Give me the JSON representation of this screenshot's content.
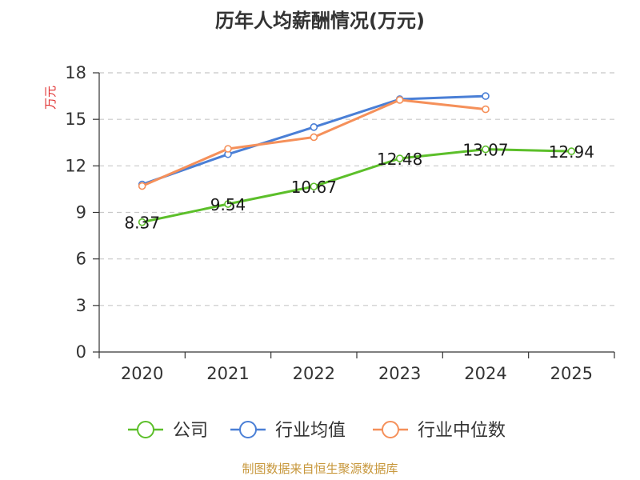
{
  "chart_data": {
    "type": "line",
    "title": "历年人均薪酬情况(万元)",
    "ylabel": "万元",
    "xlabel": "",
    "ylim": [
      0,
      18
    ],
    "yticks": [
      0,
      3,
      6,
      9,
      12,
      15,
      18
    ],
    "categories": [
      "2020",
      "2021",
      "2022",
      "2023",
      "2024",
      "2025"
    ],
    "series": [
      {
        "name": "公司",
        "color": "#5cbf2a",
        "values": [
          8.37,
          9.54,
          10.67,
          12.48,
          13.07,
          12.94
        ],
        "labels": [
          "8.37",
          "9.54",
          "10.67",
          "12.48",
          "13.07",
          "12.94"
        ]
      },
      {
        "name": "行业均值",
        "color": "#4a7fd6",
        "values": [
          10.8,
          12.75,
          14.5,
          16.3,
          16.5,
          null
        ]
      },
      {
        "name": "行业中位数",
        "color": "#f5905a",
        "values": [
          10.7,
          13.1,
          13.85,
          16.25,
          15.65,
          null
        ]
      }
    ],
    "legend_position": "bottom",
    "grid": true
  },
  "source": "制图数据来自恒生聚源数据库"
}
